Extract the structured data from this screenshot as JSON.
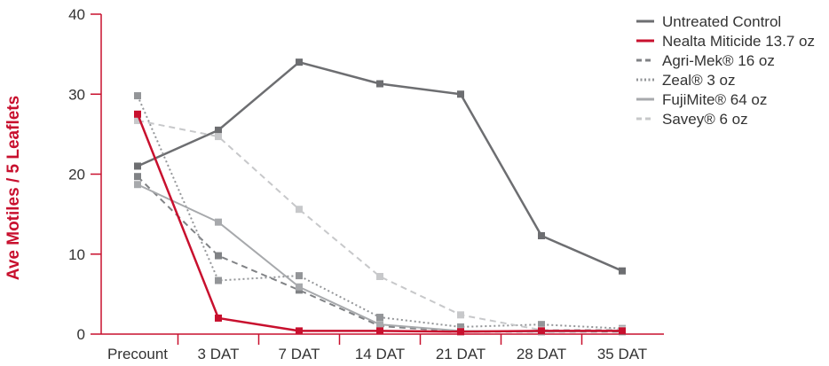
{
  "chart_data": {
    "type": "line",
    "title": "",
    "xlabel": "",
    "ylabel": "Ave Motiles / 5 Leaflets",
    "ylim": [
      0,
      40
    ],
    "yticks": [
      "0",
      "10",
      "20",
      "30",
      "40"
    ],
    "categories": [
      "Precount",
      "3 DAT",
      "7 DAT",
      "14 DAT",
      "21 DAT",
      "28 DAT",
      "35 DAT"
    ],
    "grid": false,
    "legend_position": "top-right",
    "axis_color": "#c8102e",
    "series": [
      {
        "name": "Untreated Control",
        "color": "#6d6e71",
        "dash": "solid",
        "width": 2.5,
        "values": [
          21,
          25.5,
          34,
          31.3,
          30,
          12.3,
          7.9
        ]
      },
      {
        "name": "Nealta Miticide 13.7 oz",
        "color": "#c8102e",
        "dash": "solid",
        "width": 2.5,
        "values": [
          27.5,
          2,
          0.4,
          0.4,
          0.3,
          0.4,
          0.4
        ]
      },
      {
        "name": "Agri-Mek® 16 oz",
        "color": "#808285",
        "dash": "dashed",
        "width": 2,
        "values": [
          19.7,
          9.8,
          5.5,
          1,
          0.3,
          0.3,
          0.3
        ]
      },
      {
        "name": "Zeal® 3 oz",
        "color": "#939598",
        "dash": "dotted",
        "width": 2,
        "values": [
          29.8,
          6.7,
          7.3,
          2.1,
          0.9,
          1.2,
          0.7
        ]
      },
      {
        "name": "FujiMite® 64 oz",
        "color": "#a7a9ac",
        "dash": "solid",
        "width": 2,
        "values": [
          18.7,
          14,
          5.9,
          1.2,
          0.4,
          0.3,
          0.4
        ]
      },
      {
        "name": "Savey® 6 oz",
        "color": "#c7c8ca",
        "dash": "dashed",
        "width": 2,
        "values": [
          26.7,
          24.7,
          15.6,
          7.2,
          2.4,
          0.5,
          0.6
        ]
      }
    ]
  }
}
